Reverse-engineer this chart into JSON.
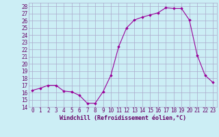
{
  "xlabel": "Windchill (Refroidissement éolien,°C)",
  "x": [
    0,
    1,
    2,
    3,
    4,
    5,
    6,
    7,
    8,
    9,
    10,
    11,
    12,
    13,
    14,
    15,
    16,
    17,
    18,
    19,
    20,
    21,
    22,
    23
  ],
  "y": [
    16.3,
    16.6,
    17.0,
    17.0,
    16.2,
    16.1,
    15.6,
    14.5,
    14.5,
    16.1,
    18.4,
    22.4,
    25.0,
    26.1,
    26.5,
    26.8,
    27.1,
    27.8,
    27.7,
    27.7,
    26.1,
    21.2,
    18.4,
    17.4
  ],
  "ylim": [
    14,
    28.5
  ],
  "xlim": [
    -0.5,
    23.5
  ],
  "yticks": [
    14,
    15,
    16,
    17,
    18,
    19,
    20,
    21,
    22,
    23,
    24,
    25,
    26,
    27,
    28
  ],
  "xticks": [
    0,
    1,
    2,
    3,
    4,
    5,
    6,
    7,
    8,
    9,
    10,
    11,
    12,
    13,
    14,
    15,
    16,
    17,
    18,
    19,
    20,
    21,
    22,
    23
  ],
  "line_color": "#990099",
  "marker": "D",
  "marker_size": 1.8,
  "bg_color": "#cceef5",
  "grid_color": "#aaaacc",
  "tick_label_color": "#660066",
  "axis_label_color": "#660066",
  "font_size_ticks": 5.5,
  "font_size_xlabel": 6.0
}
